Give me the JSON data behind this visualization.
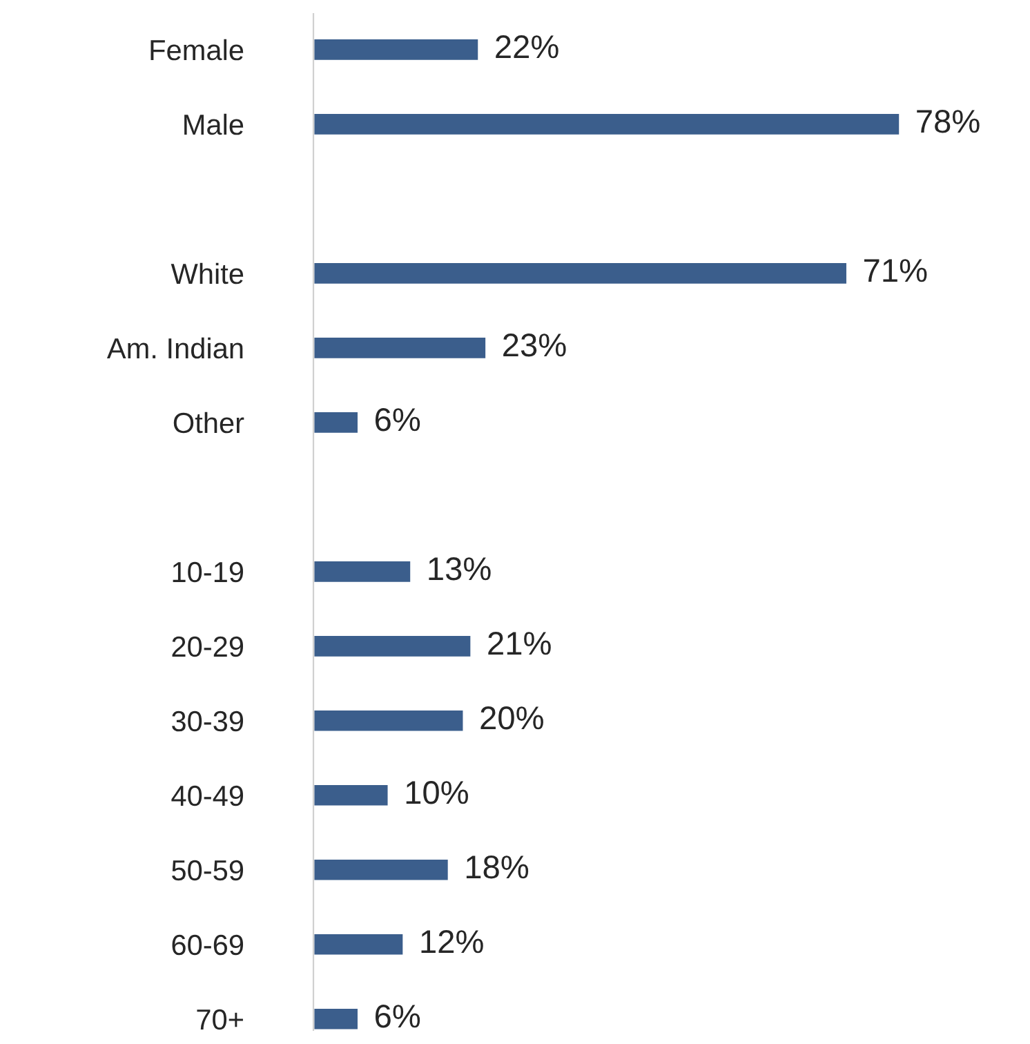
{
  "chart_data": {
    "type": "bar",
    "orientation": "horizontal",
    "categories": [
      "Female",
      "Male",
      null,
      "White",
      "Am. Indian",
      "Other",
      null,
      "10-19",
      "20-29",
      "30-39",
      "40-49",
      "50-59",
      "60-69",
      "70+"
    ],
    "values": [
      22,
      78,
      null,
      71,
      23,
      6,
      null,
      13,
      21,
      20,
      10,
      18,
      12,
      6
    ],
    "value_labels": [
      "22%",
      "78%",
      null,
      "71%",
      "23%",
      "6%",
      null,
      "13%",
      "21%",
      "20%",
      "10%",
      "18%",
      "12%",
      "6%"
    ],
    "color": "#3b5e8c",
    "grid": false,
    "legend": false
  }
}
